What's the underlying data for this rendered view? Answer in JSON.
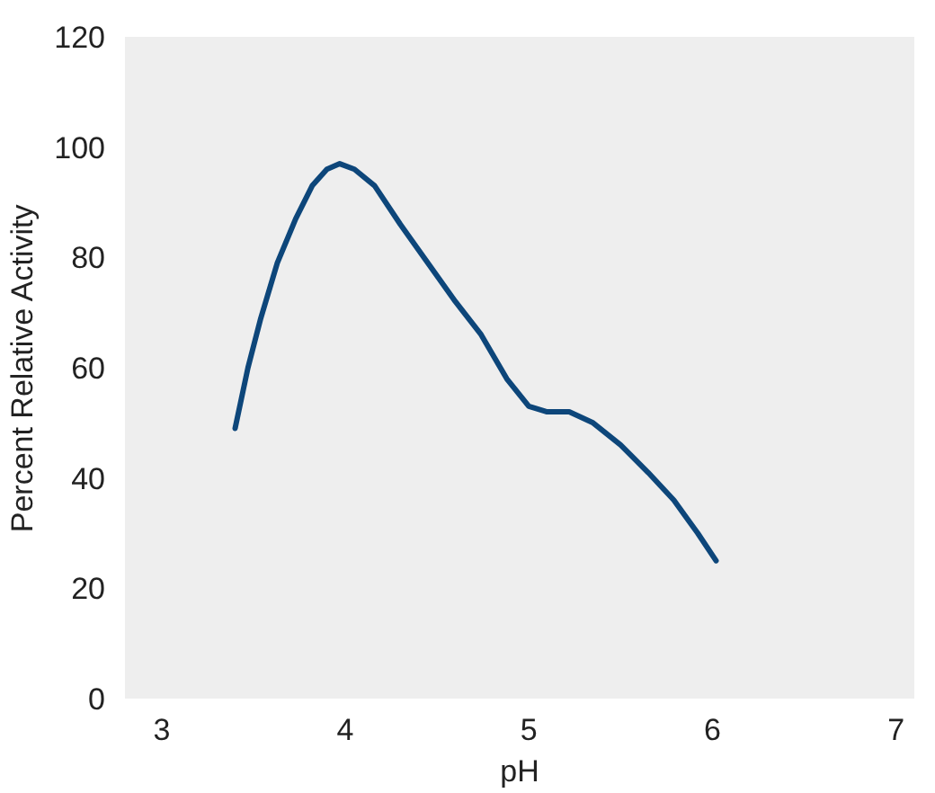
{
  "chart_data": {
    "type": "line",
    "xlabel": "pH",
    "ylabel": "Percent Relative Activity",
    "x": [
      3.4,
      3.47,
      3.54,
      3.63,
      3.73,
      3.82,
      3.9,
      3.97,
      4.05,
      4.16,
      4.3,
      4.45,
      4.6,
      4.74,
      4.88,
      5.0,
      5.1,
      5.22,
      5.35,
      5.5,
      5.65,
      5.79,
      5.92,
      6.02
    ],
    "series": [
      {
        "color": "#0d467a",
        "values": [
          49,
          60,
          69,
          79,
          87,
          93,
          96,
          97,
          96,
          93,
          86,
          79,
          72,
          66,
          58,
          53,
          52,
          52,
          50,
          46,
          41,
          36,
          30,
          25
        ]
      }
    ],
    "xlim": [
      2.8,
      7.1
    ],
    "ylim": [
      0,
      120
    ],
    "xticks": [
      3,
      4,
      5,
      6,
      7
    ],
    "yticks": [
      0,
      20,
      40,
      60,
      80,
      100,
      120
    ],
    "grid": false,
    "marker": "none",
    "line_style": "solid"
  }
}
